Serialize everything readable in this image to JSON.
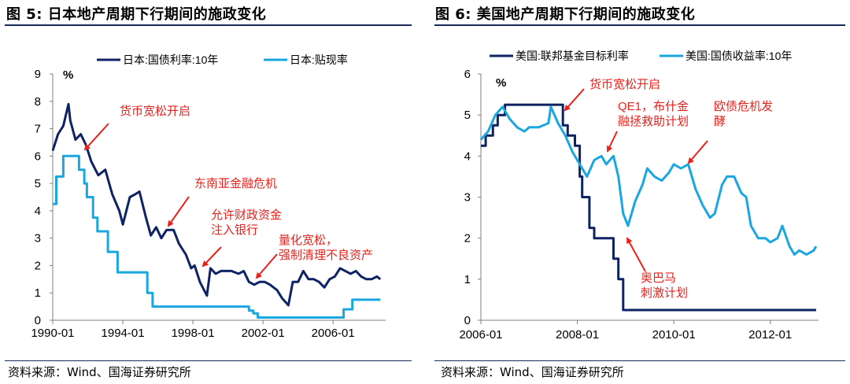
{
  "left": {
    "title": "图 5:  日本地产周期下行期间的施政变化",
    "source": "资料来源：Wind、国海证券研究所"
  },
  "right": {
    "title": "图 6:  美国地产周期下行期间的施政变化",
    "source": "资料来源：Wind、国海证券研究所"
  },
  "colors": {
    "dark": "#0d2364",
    "light": "#1aa7e0",
    "annotation": "#e8211b",
    "axis": "#7f7f7f"
  },
  "chart_data": [
    {
      "type": "line",
      "unit_label": "%",
      "xlim": [
        1990.0,
        2009.0
      ],
      "ylim": [
        0,
        9
      ],
      "xticks": [
        1990.0,
        1994.0,
        1998.0,
        2002.0,
        2006.0
      ],
      "xtick_labels": [
        "1990-01",
        "1994-01",
        "1998-01",
        "2002-01",
        "2006-01"
      ],
      "yticks": [
        0,
        1,
        2,
        3,
        4,
        5,
        6,
        7,
        8,
        9
      ],
      "legend_position": "top",
      "series": [
        {
          "name": "日本:国债利率:10年",
          "color": "#0d2364",
          "step": false,
          "x": [
            1990.0,
            1990.3,
            1990.6,
            1990.9,
            1991.0,
            1991.3,
            1991.6,
            1991.9,
            1992.2,
            1992.6,
            1993.0,
            1993.4,
            1993.8,
            1994.0,
            1994.4,
            1994.7,
            1994.95,
            1995.3,
            1995.6,
            1995.9,
            1996.2,
            1996.5,
            1996.9,
            1997.2,
            1997.6,
            1997.9,
            1998.1,
            1998.4,
            1998.8,
            1999.0,
            1999.3,
            1999.6,
            1999.9,
            2000.2,
            2000.6,
            2000.9,
            2001.2,
            2001.5,
            2001.8,
            2002.1,
            2002.4,
            2002.8,
            2003.1,
            2003.45,
            2003.7,
            2004.0,
            2004.3,
            2004.6,
            2004.9,
            2005.2,
            2005.5,
            2005.8,
            2006.1,
            2006.4,
            2006.7,
            2007.0,
            2007.3,
            2007.6,
            2007.9,
            2008.2,
            2008.5,
            2008.7
          ],
          "y": [
            6.2,
            6.8,
            7.1,
            7.9,
            7.3,
            6.6,
            6.8,
            6.4,
            5.8,
            5.3,
            5.5,
            4.6,
            4.0,
            3.5,
            4.5,
            4.6,
            4.7,
            3.8,
            3.1,
            3.4,
            3.0,
            3.3,
            3.3,
            2.8,
            2.4,
            1.9,
            2.0,
            1.4,
            0.9,
            1.9,
            1.7,
            1.8,
            1.8,
            1.8,
            1.7,
            1.8,
            1.4,
            1.3,
            1.4,
            1.4,
            1.3,
            1.1,
            0.8,
            0.55,
            1.4,
            1.4,
            1.8,
            1.5,
            1.5,
            1.4,
            1.2,
            1.5,
            1.6,
            1.9,
            1.8,
            1.7,
            1.8,
            1.6,
            1.5,
            1.5,
            1.6,
            1.5
          ]
        },
        {
          "name": "日本:贴现率",
          "color": "#1aa7e0",
          "step": true,
          "x": [
            1990.0,
            1990.2,
            1990.6,
            1991.5,
            1991.8,
            1991.95,
            1992.3,
            1992.55,
            1993.15,
            1993.7,
            1995.4,
            1995.7,
            2001.2,
            2001.45,
            2001.7,
            2006.6,
            2007.1,
            2008.7
          ],
          "y": [
            4.25,
            5.25,
            6.0,
            5.5,
            5.0,
            4.5,
            3.75,
            3.25,
            2.5,
            1.75,
            1.0,
            0.5,
            0.35,
            0.25,
            0.1,
            0.4,
            0.75,
            0.75
          ]
        }
      ],
      "annotations": [
        {
          "text": [
            "货币宽松开启"
          ]
        },
        {
          "text": [
            "东南亚金融危机"
          ]
        },
        {
          "text": [
            "允许财政资金",
            "注入银行"
          ]
        },
        {
          "text": [
            "量化宽松，",
            "强制清理不良资产"
          ]
        }
      ]
    },
    {
      "type": "line",
      "unit_label": "%",
      "xlim": [
        2006.0,
        2013.0
      ],
      "ylim": [
        0,
        6
      ],
      "xticks": [
        2006.0,
        2008.0,
        2010.0,
        2012.0
      ],
      "xtick_labels": [
        "2006-01",
        "2008-01",
        "2010-01",
        "2012-01"
      ],
      "yticks": [
        0,
        1,
        2,
        3,
        4,
        5,
        6
      ],
      "legend_position": "top",
      "series": [
        {
          "name": "美国:联邦基金目标利率",
          "color": "#0d2364",
          "step": true,
          "x": [
            2006.0,
            2006.1,
            2006.25,
            2006.35,
            2006.5,
            2007.7,
            2007.8,
            2007.95,
            2008.05,
            2008.1,
            2008.25,
            2008.35,
            2008.75,
            2008.85,
            2008.95,
            2012.95
          ],
          "y": [
            4.25,
            4.5,
            4.75,
            5.0,
            5.25,
            4.75,
            4.5,
            4.25,
            3.5,
            3.0,
            2.25,
            2.0,
            1.5,
            1.0,
            0.25,
            0.25
          ]
        },
        {
          "name": "美国:国债收益率:10年",
          "color": "#1aa7e0",
          "step": false,
          "x": [
            2006.0,
            2006.15,
            2006.3,
            2006.45,
            2006.6,
            2006.75,
            2006.9,
            2007.0,
            2007.2,
            2007.4,
            2007.45,
            2007.6,
            2007.75,
            2007.9,
            2008.05,
            2008.2,
            2008.35,
            2008.5,
            2008.6,
            2008.75,
            2008.85,
            2008.95,
            2009.05,
            2009.2,
            2009.35,
            2009.45,
            2009.6,
            2009.75,
            2009.9,
            2010.0,
            2010.15,
            2010.3,
            2010.45,
            2010.6,
            2010.75,
            2010.85,
            2011.0,
            2011.1,
            2011.25,
            2011.4,
            2011.5,
            2011.6,
            2011.75,
            2011.9,
            2012.0,
            2012.15,
            2012.25,
            2012.4,
            2012.5,
            2012.6,
            2012.75,
            2012.9,
            2012.95
          ],
          "y": [
            4.4,
            4.6,
            5.0,
            5.2,
            4.9,
            4.7,
            4.6,
            4.7,
            4.7,
            4.8,
            5.2,
            4.8,
            4.5,
            4.1,
            3.8,
            3.5,
            3.9,
            4.0,
            3.8,
            4.0,
            3.5,
            2.6,
            2.3,
            2.9,
            3.3,
            3.7,
            3.5,
            3.4,
            3.6,
            3.8,
            3.7,
            3.8,
            3.2,
            2.8,
            2.5,
            2.6,
            3.3,
            3.5,
            3.5,
            3.1,
            3.0,
            2.3,
            2.0,
            2.0,
            1.9,
            2.0,
            2.3,
            1.8,
            1.6,
            1.7,
            1.6,
            1.7,
            1.8
          ]
        }
      ],
      "annotations": [
        {
          "text": [
            "货币宽松开启"
          ]
        },
        {
          "text": [
            "QE1，布什金",
            "融拯救助计划"
          ]
        },
        {
          "text": [
            "欧债危机发",
            "酵"
          ]
        },
        {
          "text": [
            "奥巴马",
            "刺激计划"
          ]
        }
      ]
    }
  ]
}
